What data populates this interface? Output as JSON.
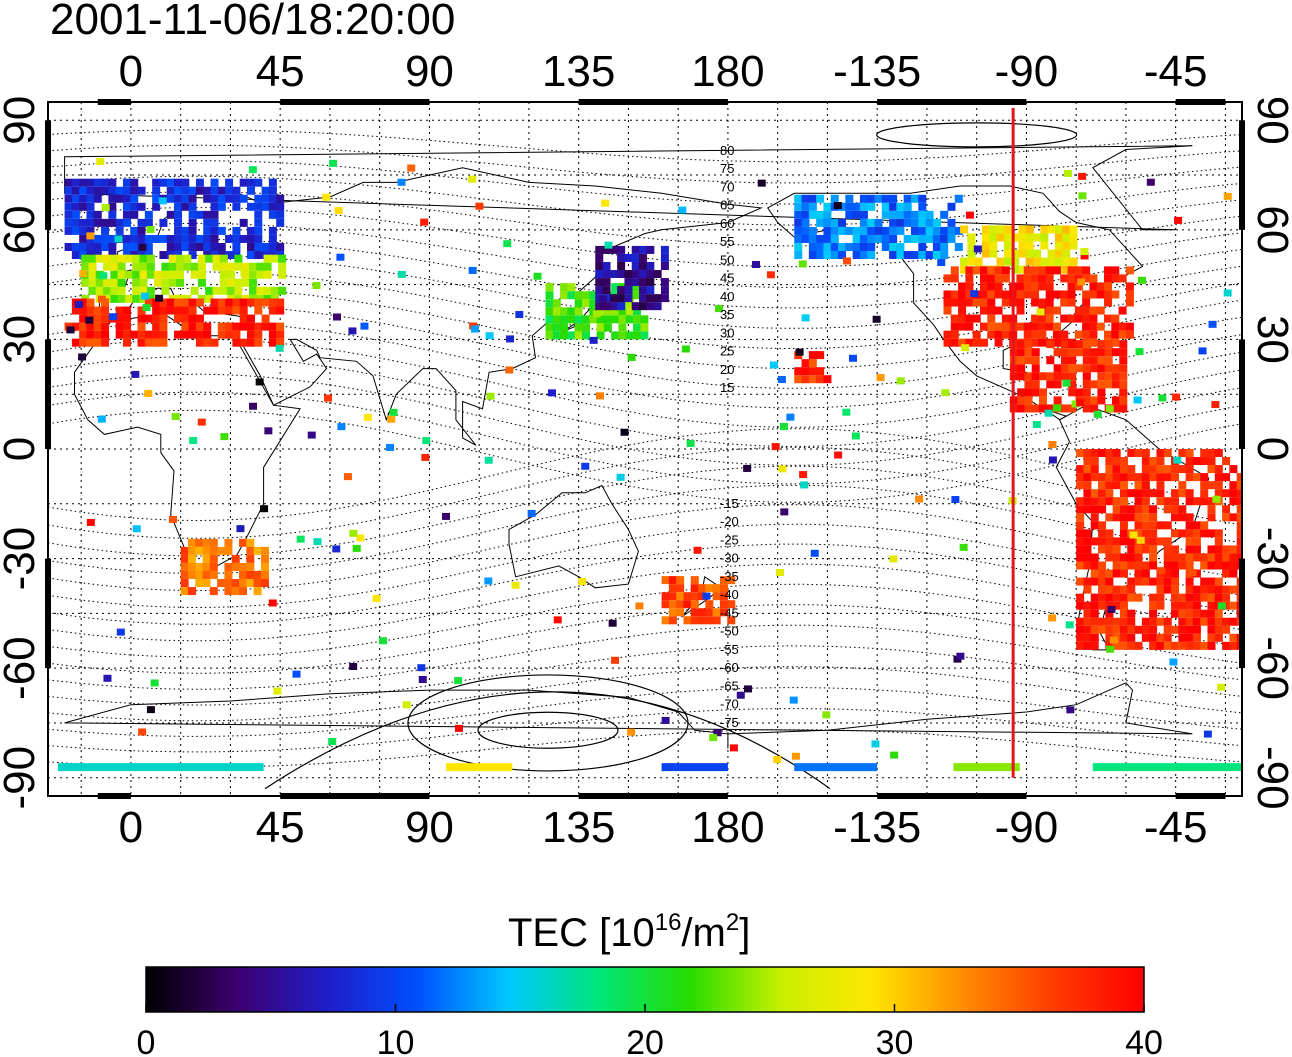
{
  "title": "2001-11-06/18:20:00",
  "map": {
    "top_lon_ticks": [
      "0",
      "45",
      "90",
      "135",
      "180",
      "-135",
      "-90",
      "-45"
    ],
    "bottom_lon_ticks": [
      "0",
      "45",
      "90",
      "135",
      "180",
      "-135",
      "-90",
      "-45"
    ],
    "left_lat_ticks": [
      "90",
      "60",
      "30",
      "0",
      "-30",
      "-60",
      "-90"
    ],
    "right_lat_ticks": [
      "90",
      "60",
      "30",
      "0",
      "-30",
      "-60",
      "-90"
    ],
    "lon_range": [
      -25,
      335
    ],
    "lat_range": [
      -95,
      95
    ],
    "marker_line_lon": -94,
    "marker_line_color": "#e8141c",
    "contour_labels_north": [
      "80",
      "75",
      "70",
      "65",
      "60",
      "55",
      "50",
      "45",
      "40",
      "35",
      "30",
      "25",
      "20",
      "15"
    ],
    "contour_labels_south": [
      "-15",
      "-20",
      "-25",
      "-30",
      "-35",
      "-40",
      "-45",
      "-50",
      "-55",
      "-60",
      "-65",
      "-70",
      "-75"
    ]
  },
  "colorbar": {
    "title_main": "TEC  [10",
    "title_sup1": "16",
    "title_mid": "/m",
    "title_sup2": "2",
    "title_end": "]",
    "ticks": [
      "0",
      "10",
      "20",
      "30",
      "40"
    ],
    "range": [
      0,
      40
    ],
    "colors": [
      "#000000",
      "#3c006e",
      "#1e1ec8",
      "#0050ff",
      "#00c8ff",
      "#00e678",
      "#28dc00",
      "#c8f000",
      "#ffe600",
      "#ff8c00",
      "#ff3c00",
      "#ff0000"
    ]
  },
  "chart_data": {
    "type": "heatmap",
    "title": "2001-11-06/18:20:00",
    "xlabel": "",
    "ylabel": "",
    "xlim": [
      -25,
      335
    ],
    "ylim": [
      -95,
      95
    ],
    "colorbar_label": "TEC [10^16/m^2]",
    "colorbar_range": [
      0,
      40
    ],
    "regions": [
      {
        "lon": [
          -20,
          45
        ],
        "lat": [
          52,
          72
        ],
        "tec": 8
      },
      {
        "lon": [
          -15,
          45
        ],
        "lat": [
          40,
          52
        ],
        "tec": 25
      },
      {
        "lon": [
          -20,
          45
        ],
        "lat": [
          28,
          40
        ],
        "tec": 38
      },
      {
        "lon": [
          200,
          250
        ],
        "lat": [
          52,
          68
        ],
        "tec": 12
      },
      {
        "lon": [
          250,
          285
        ],
        "lat": [
          48,
          60
        ],
        "tec": 28
      },
      {
        "lon": [
          245,
          300
        ],
        "lat": [
          28,
          48
        ],
        "tec": 38
      },
      {
        "lon": [
          265,
          300
        ],
        "lat": [
          10,
          28
        ],
        "tec": 38
      },
      {
        "lon": [
          285,
          335
        ],
        "lat": [
          -55,
          0
        ],
        "tec": 38
      },
      {
        "lon": [
          125,
          155
        ],
        "lat": [
          30,
          45
        ],
        "tec": 22
      },
      {
        "lon": [
          140,
          160
        ],
        "lat": [
          38,
          55
        ],
        "tec": 5
      },
      {
        "lon": [
          15,
          40
        ],
        "lat": [
          -40,
          -25
        ],
        "tec": 34
      },
      {
        "lon": [
          160,
          180
        ],
        "lat": [
          -48,
          -35
        ],
        "tec": 36
      },
      {
        "lon": [
          200,
          210
        ],
        "lat": [
          18,
          26
        ],
        "tec": 38
      }
    ]
  }
}
